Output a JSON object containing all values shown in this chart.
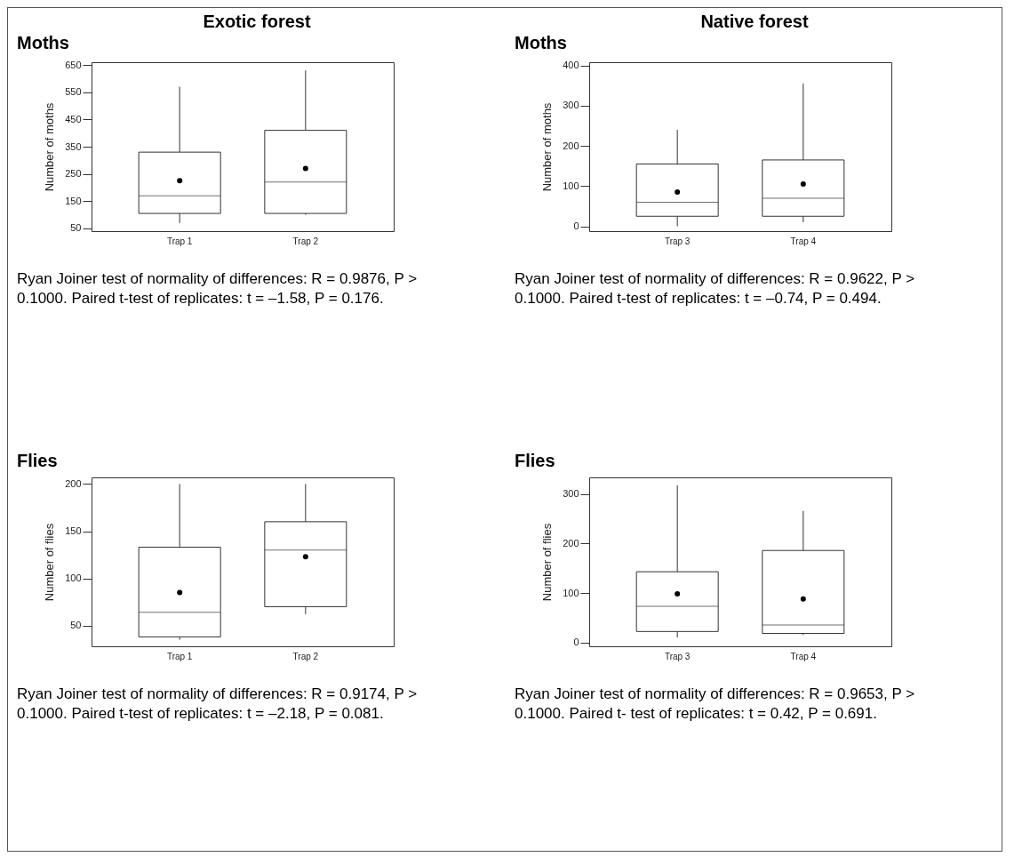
{
  "chart_data": [
    {
      "type": "box",
      "title": "Exotic forest",
      "subtitle": "Moths",
      "ylabel": "Number of moths",
      "categories": [
        "Trap 1",
        "Trap 2"
      ],
      "boxes": [
        {
          "low": 70,
          "q1": 105,
          "median": 170,
          "q3": 330,
          "high": 570,
          "mean": 225
        },
        {
          "low": 100,
          "q1": 105,
          "median": 220,
          "q3": 410,
          "high": 630,
          "mean": 270
        }
      ],
      "ylim": [
        40,
        660
      ],
      "yticks": [
        50,
        150,
        250,
        350,
        450,
        550,
        650
      ],
      "grid": false,
      "marker": "circle",
      "annotations": [
        "Ryan Joiner test of normality of differences: R = 0.9876, P > 0.1000.  Paired t-test of replicates: t = –1.58, P = 0.176."
      ]
    },
    {
      "type": "box",
      "title": "Native forest",
      "subtitle": "Moths",
      "ylabel": "Number of moths",
      "categories": [
        "Trap 3",
        "Trap 4"
      ],
      "boxes": [
        {
          "low": 0,
          "q1": 25,
          "median": 60,
          "q3": 155,
          "high": 240,
          "mean": 85
        },
        {
          "low": 10,
          "q1": 25,
          "median": 70,
          "q3": 165,
          "high": 355,
          "mean": 105
        }
      ],
      "ylim": [
        -12,
        408
      ],
      "yticks": [
        0,
        100,
        200,
        300,
        400
      ],
      "grid": false,
      "marker": "circle",
      "annotations": [
        "Ryan Joiner test of normality of differences: R = 0.9622, P > 0.1000.  Paired t-test of replicates: t = –0.74, P = 0.494."
      ]
    },
    {
      "type": "box",
      "subtitle": "Flies",
      "ylabel": "Number of flies",
      "categories": [
        "Trap 1",
        "Trap 2"
      ],
      "boxes": [
        {
          "low": 35,
          "q1": 38,
          "median": 64,
          "q3": 133,
          "high": 200,
          "mean": 85
        },
        {
          "low": 62,
          "q1": 70,
          "median": 130,
          "q3": 160,
          "high": 200,
          "mean": 123
        }
      ],
      "ylim": [
        28,
        207
      ],
      "yticks": [
        50,
        100,
        150,
        200
      ],
      "grid": false,
      "marker": "circle",
      "annotations": [
        "Ryan Joiner test of normality of differences: R = 0.9174, P > 0.1000.  Paired t-test of replicates: t = –2.18, P = 0.081."
      ]
    },
    {
      "type": "box",
      "subtitle": "Flies",
      "ylabel": "Number of flies",
      "categories": [
        "Trap 3",
        "Trap 4"
      ],
      "boxes": [
        {
          "low": 10,
          "q1": 22,
          "median": 73,
          "q3": 143,
          "high": 318,
          "mean": 98
        },
        {
          "low": 15,
          "q1": 18,
          "median": 35,
          "q3": 186,
          "high": 266,
          "mean": 88
        }
      ],
      "ylim": [
        -8,
        334
      ],
      "yticks": [
        0,
        100,
        200,
        300
      ],
      "grid": false,
      "marker": "circle",
      "annotations": [
        "Ryan Joiner test of normality of differences: R = 0.9653, P > 0.1000.  Paired t- test of replicates: t = 0.42, P = 0.691."
      ]
    }
  ]
}
